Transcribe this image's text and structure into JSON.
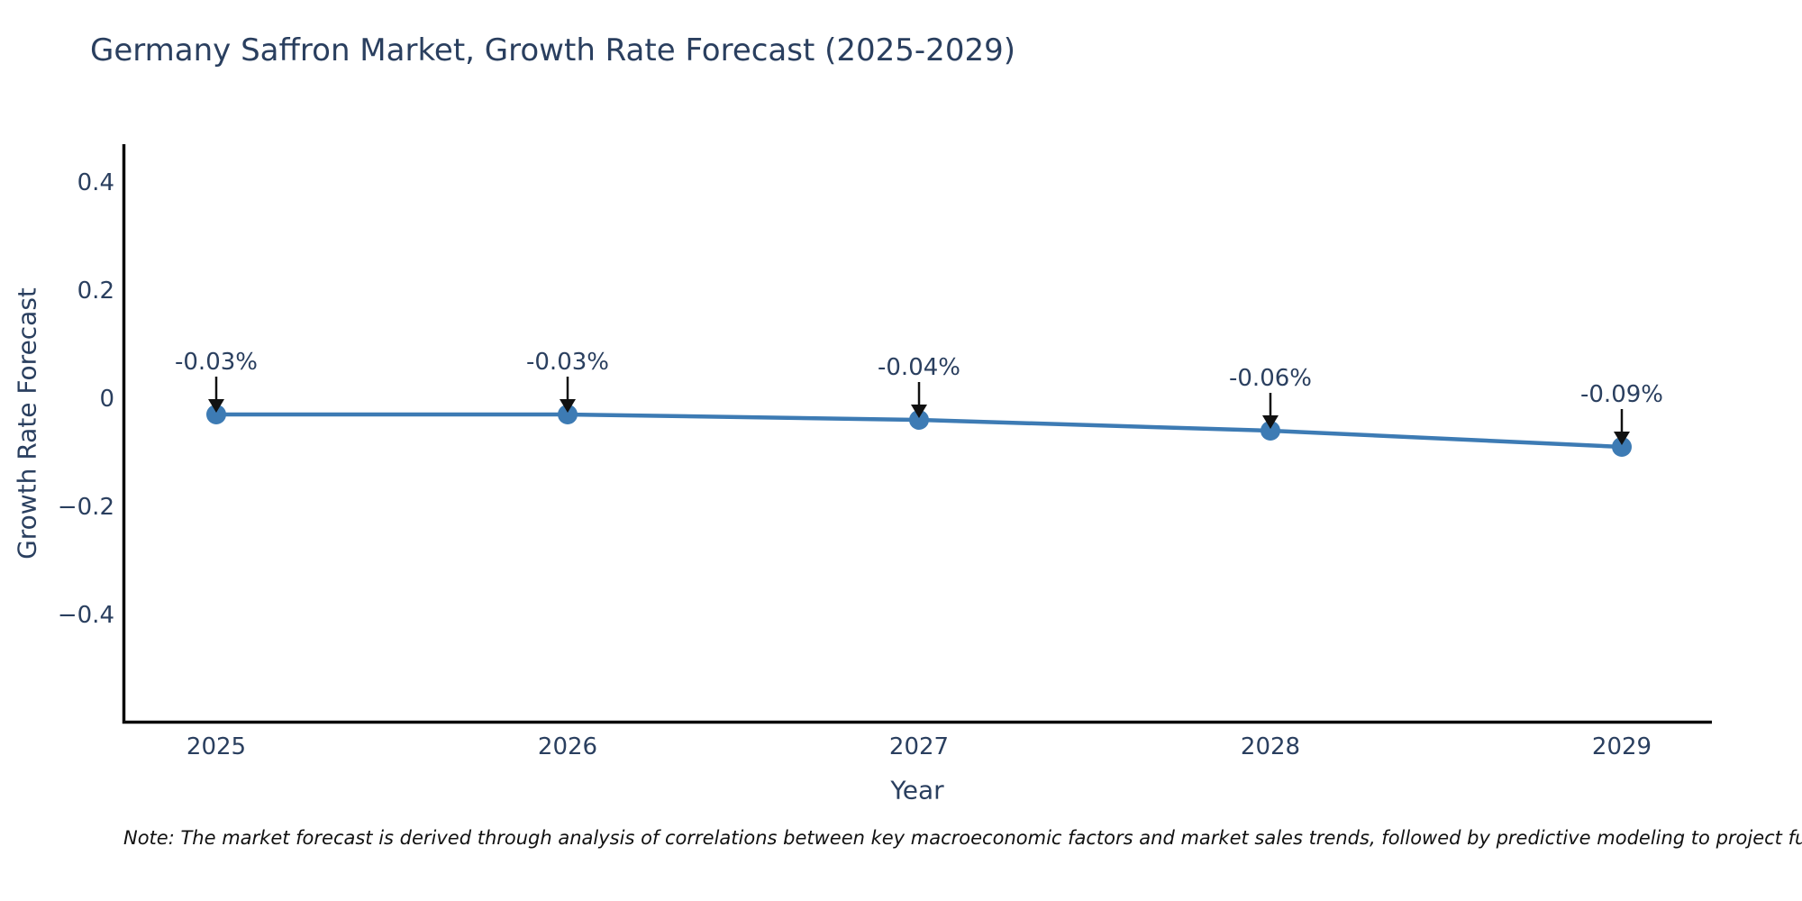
{
  "title": "Germany Saffron Market, Growth Rate Forecast (2025-2029)",
  "note": "Note: The market forecast is derived through analysis of correlations between key macroeconomic factors and market sales trends, followed by predictive modeling to project future sa",
  "chart_data": {
    "type": "line",
    "title": "Germany Saffron Market, Growth Rate Forecast (2025-2029)",
    "xlabel": "Year",
    "ylabel": "Growth Rate Forecast",
    "categories": [
      "2025",
      "2026",
      "2027",
      "2028",
      "2029"
    ],
    "series": [
      {
        "name": "Growth Rate Forecast",
        "values": [
          -0.03,
          -0.03,
          -0.04,
          -0.06,
          -0.09
        ]
      }
    ],
    "point_labels": [
      "-0.03%",
      "-0.03%",
      "-0.04%",
      "-0.06%",
      "-0.09%"
    ],
    "yticks": [
      0.4,
      0.2,
      0,
      -0.2,
      -0.4
    ],
    "ytick_labels": [
      "0.4",
      "0.2",
      "0",
      "−0.2",
      "−0.4"
    ],
    "ylim": [
      -0.6,
      0.48
    ],
    "grid": false,
    "legend": "none",
    "annotations_have_arrows": true,
    "colors": {
      "line": "#3d7bb4",
      "marker": "#3d7bb4",
      "text": "#2a3f5f",
      "axis": "#0b0b0b",
      "arrow": "#111111",
      "background": "#ffffff"
    }
  }
}
